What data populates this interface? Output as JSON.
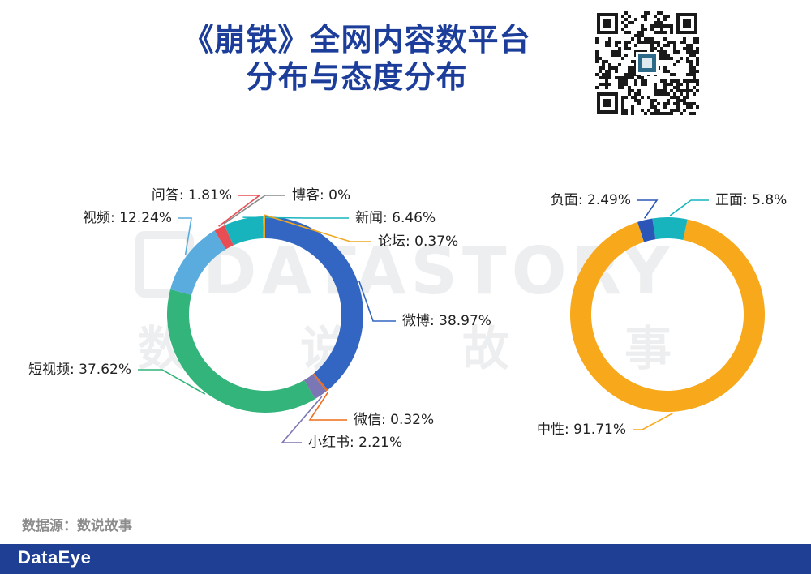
{
  "title": {
    "line1": "《崩铁》全网内容数平台",
    "line2": "分布与态度分布"
  },
  "source_text": "数据源：数说故事",
  "footer": {
    "brand": "DataEye"
  },
  "watermark": {
    "line1": "DATASTORY",
    "line2": [
      "数",
      "说",
      "故",
      "事"
    ]
  },
  "icons": {
    "qr": "qr-code-icon",
    "qr_center_logo": "datastory-logo-icon"
  },
  "chart_data": [
    {
      "type": "pie",
      "donut": true,
      "categories": [
        "微博",
        "微信",
        "小红书",
        "短视频",
        "视频",
        "问答",
        "博客",
        "新闻",
        "论坛"
      ],
      "values": [
        38.97,
        0.32,
        2.21,
        37.62,
        12.24,
        1.81,
        0,
        6.46,
        0.37
      ],
      "labels": [
        "微博: 38.97%",
        "微信: 0.32%",
        "小红书: 2.21%",
        "短视频: 37.62%",
        "视频: 12.24%",
        "问答: 1.81%",
        "博客: 0%",
        "新闻: 6.46%",
        "论坛: 0.37%"
      ],
      "colors": [
        "#3266c2",
        "#ef6b1c",
        "#7b76b4",
        "#33b47a",
        "#5aacde",
        "#e84d54",
        "#8a8a8a",
        "#17b4be",
        "#f0a81f"
      ]
    },
    {
      "type": "pie",
      "donut": true,
      "categories": [
        "正面",
        "中性",
        "负面"
      ],
      "values": [
        5.8,
        91.71,
        2.49
      ],
      "labels": [
        "正面: 5.8%",
        "中性: 91.71%",
        "负面: 2.49%"
      ],
      "colors": [
        "#17b4be",
        "#f8a81b",
        "#2b56b8"
      ]
    }
  ]
}
